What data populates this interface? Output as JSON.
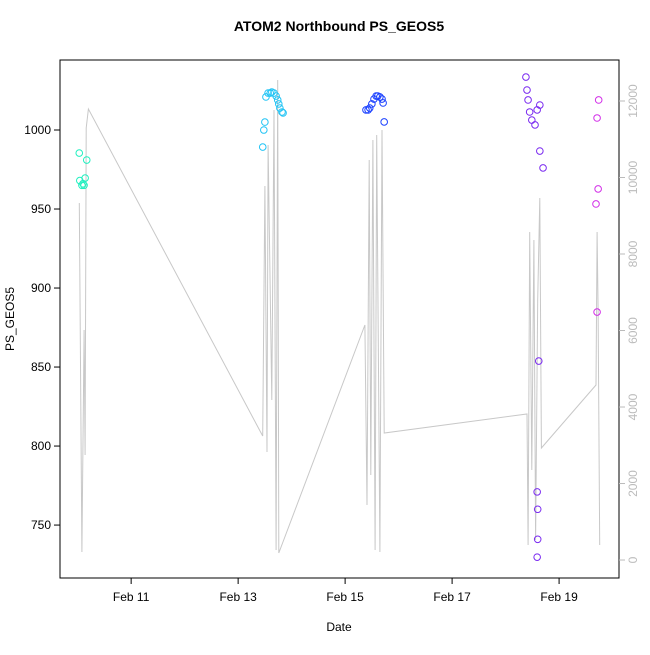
{
  "chart_data": {
    "type": "scatter",
    "title": "ATOM2 Northbound PS_GEOS5",
    "x_label": "Date",
    "y_label": "PS_GEOS5",
    "xlim": [
      9.67,
      20.12
    ],
    "xticks": [
      {
        "value": 11,
        "label": "Feb 11"
      },
      {
        "value": 13,
        "label": "Feb 13"
      },
      {
        "value": 15,
        "label": "Feb 15"
      },
      {
        "value": 17,
        "label": "Feb 17"
      },
      {
        "value": 19,
        "label": "Feb 19"
      }
    ],
    "ylim": [
      716.5,
      1044.3
    ],
    "yticks": [
      750,
      800,
      850,
      900,
      950,
      1000
    ],
    "y2lim": [
      -470,
      13072
    ],
    "y2ticks": [
      0,
      2000,
      4000,
      6000,
      8000,
      10000,
      12000
    ],
    "y2_color": "#bbbbbb",
    "series": [
      {
        "color": "#22f0c0",
        "x": [
          10.03,
          10.04,
          10.08,
          10.1,
          10.12,
          10.14,
          10.17
        ],
        "values": [
          985.4,
          968,
          965,
          966,
          965,
          969.6,
          981
        ]
      },
      {
        "color": "#22c4f5",
        "x": [
          13.46,
          13.48,
          13.5,
          13.52,
          13.56,
          13.6,
          13.63,
          13.67,
          13.71,
          13.74,
          13.76,
          13.78,
          13.82,
          13.84
        ],
        "values": [
          989.2,
          1000,
          1005,
          1020.9,
          1023.4,
          1023.4,
          1024,
          1023.4,
          1021.5,
          1019,
          1016.5,
          1013.9,
          1011.4,
          1010.8
        ]
      },
      {
        "color": "#1a40ff",
        "x": [
          15.39,
          15.43,
          15.46,
          15.5,
          15.54,
          15.58,
          15.61,
          15.65,
          15.69,
          15.71,
          15.73
        ],
        "values": [
          1012.7,
          1012.7,
          1013.9,
          1016.5,
          1019.6,
          1021.5,
          1021.5,
          1020.9,
          1019.6,
          1017.1,
          1005.1
        ]
      },
      {
        "color": "#7a2af0",
        "x": [
          18.38,
          18.4,
          18.42,
          18.45,
          18.49,
          18.55,
          18.59,
          18.64,
          18.64,
          18.7,
          18.62,
          18.59,
          18.6,
          18.6,
          18.59
        ],
        "values": [
          1033.5,
          1025.3,
          1019,
          1011.4,
          1006.3,
          1003.2,
          1012.7,
          1015.8,
          986.7,
          976,
          853.8,
          771,
          760,
          741,
          729.7
        ]
      },
      {
        "color": "#d22ee8",
        "x": [
          19.71,
          19.71,
          19.73,
          19.69,
          19.74
        ],
        "values": [
          884.8,
          1007.6,
          962.7,
          953.2,
          1019
        ]
      },
      {
        "type": "line",
        "axis": "y2",
        "color": "#c8c8c8",
        "x": [
          10.03,
          10.08,
          10.12,
          10.14,
          10.16,
          10.2,
          13.46,
          13.5,
          13.54,
          13.56,
          13.63,
          13.67,
          13.71,
          13.74,
          13.76,
          15.37,
          15.41,
          15.45,
          15.48,
          15.52,
          15.56,
          15.59,
          15.65,
          15.69,
          15.73,
          18.4,
          18.42,
          18.45,
          18.49,
          18.53,
          18.56,
          18.6,
          18.64,
          18.67,
          19.69,
          19.71,
          19.73,
          19.76
        ],
        "values": [
          9333,
          209,
          6013,
          2745,
          11294,
          11791,
          3242,
          9778,
          2824,
          10850,
          4183,
          11765,
          261,
          12549,
          183,
          6144,
          1438,
          10458,
          2222,
          10980,
          261,
          11111,
          209,
          11242,
          3320,
          3817,
          392,
          8575,
          2353,
          8366,
          523,
          6797,
          9464,
          2928,
          4575,
          8575,
          6536,
          392
        ]
      }
    ]
  }
}
